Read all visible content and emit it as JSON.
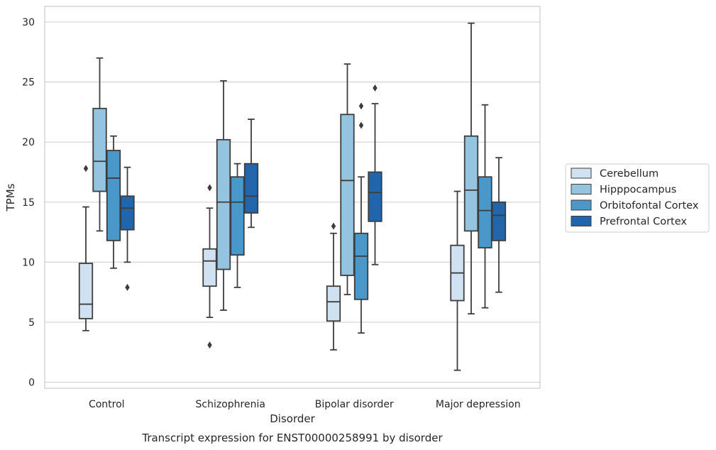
{
  "chart_data": {
    "type": "box",
    "title": "",
    "caption": "Transcript expression for ENST00000258991 by disorder",
    "xlabel": "Disorder",
    "ylabel": "TPMs",
    "ylim": [
      -0.5,
      31.3
    ],
    "yticks": [
      0,
      5,
      10,
      15,
      20,
      25,
      30
    ],
    "grid": "horizontal",
    "legend_position": "right",
    "categories": [
      "Control",
      "Schizophrenia",
      "Bipolar disorder",
      "Major depression"
    ],
    "series": [
      {
        "name": "Cerebellum",
        "color": "#d0e1f2",
        "boxes": [
          {
            "whislo": 4.3,
            "q1": 5.3,
            "med": 6.5,
            "q3": 9.9,
            "whishi": 14.6,
            "fliers": [
              17.8
            ]
          },
          {
            "whislo": 5.4,
            "q1": 8.0,
            "med": 10.1,
            "q3": 11.1,
            "whishi": 14.5,
            "fliers": [
              16.2,
              3.1
            ]
          },
          {
            "whislo": 2.7,
            "q1": 5.1,
            "med": 6.7,
            "q3": 8.0,
            "whishi": 12.4,
            "fliers": [
              13.0
            ]
          },
          {
            "whislo": 1.0,
            "q1": 6.8,
            "med": 9.1,
            "q3": 11.4,
            "whishi": 15.9,
            "fliers": []
          }
        ]
      },
      {
        "name": "Hipppocampus",
        "color": "#94c4df",
        "boxes": [
          {
            "whislo": 12.6,
            "q1": 15.9,
            "med": 18.4,
            "q3": 22.8,
            "whishi": 27.0,
            "fliers": []
          },
          {
            "whislo": 6.0,
            "q1": 9.4,
            "med": 15.0,
            "q3": 20.2,
            "whishi": 25.1,
            "fliers": []
          },
          {
            "whislo": 7.3,
            "q1": 8.9,
            "med": 16.8,
            "q3": 22.3,
            "whishi": 26.5,
            "fliers": []
          },
          {
            "whislo": 5.7,
            "q1": 12.6,
            "med": 16.0,
            "q3": 20.5,
            "whishi": 29.9,
            "fliers": []
          }
        ]
      },
      {
        "name": "Orbitofontal Cortex",
        "color": "#4a98c9",
        "boxes": [
          {
            "whislo": 9.5,
            "q1": 11.8,
            "med": 17.0,
            "q3": 19.3,
            "whishi": 20.5,
            "fliers": []
          },
          {
            "whislo": 7.9,
            "q1": 10.6,
            "med": 15.0,
            "q3": 17.1,
            "whishi": 18.2,
            "fliers": []
          },
          {
            "whislo": 4.1,
            "q1": 6.9,
            "med": 10.5,
            "q3": 12.4,
            "whishi": 17.1,
            "fliers": [
              23.0,
              21.4
            ]
          },
          {
            "whislo": 6.2,
            "q1": 11.2,
            "med": 14.3,
            "q3": 17.1,
            "whishi": 23.1,
            "fliers": []
          }
        ]
      },
      {
        "name": "Prefrontal Cortex",
        "color": "#2166ac",
        "boxes": [
          {
            "whislo": 10.0,
            "q1": 12.7,
            "med": 14.5,
            "q3": 15.5,
            "whishi": 17.9,
            "fliers": [
              7.9
            ]
          },
          {
            "whislo": 12.9,
            "q1": 14.1,
            "med": 15.5,
            "q3": 18.2,
            "whishi": 21.9,
            "fliers": []
          },
          {
            "whislo": 9.8,
            "q1": 13.4,
            "med": 15.8,
            "q3": 17.5,
            "whishi": 23.2,
            "fliers": [
              24.5
            ]
          },
          {
            "whislo": 7.5,
            "q1": 11.8,
            "med": 13.9,
            "q3": 15.0,
            "whishi": 18.7,
            "fliers": []
          }
        ]
      }
    ]
  }
}
